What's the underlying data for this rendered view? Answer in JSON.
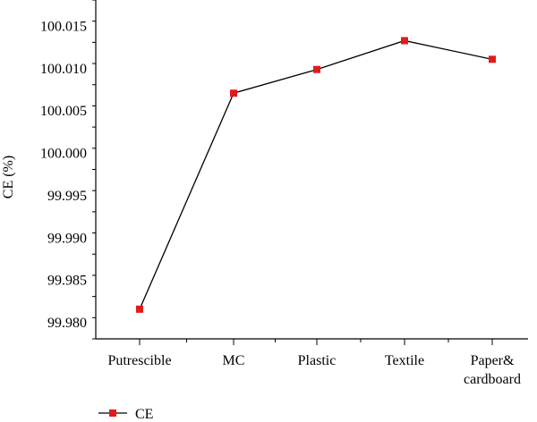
{
  "chart_data": {
    "type": "line",
    "categories": [
      "Putrescible",
      "MC",
      "Plastic",
      "Textile",
      "Paper&\ncardboard"
    ],
    "series": [
      {
        "name": "CE",
        "values": [
          99.9815,
          100.007,
          100.0098,
          100.0132,
          100.011
        ],
        "color": "#e31a1c",
        "marker": "square"
      }
    ],
    "ylabel": "CE (%)",
    "xlabel": "",
    "ylim": [
      99.978,
      100.018
    ],
    "yticks": [
      "99.980",
      "99.985",
      "99.990",
      "99.995",
      "100.000",
      "100.005",
      "100.010",
      "100.015"
    ],
    "ytick_values": [
      99.98,
      99.985,
      99.99,
      99.995,
      100.0,
      100.005,
      100.01,
      100.015
    ],
    "grid": false,
    "legend_position": "bottom-left",
    "line_color": "#000000"
  }
}
